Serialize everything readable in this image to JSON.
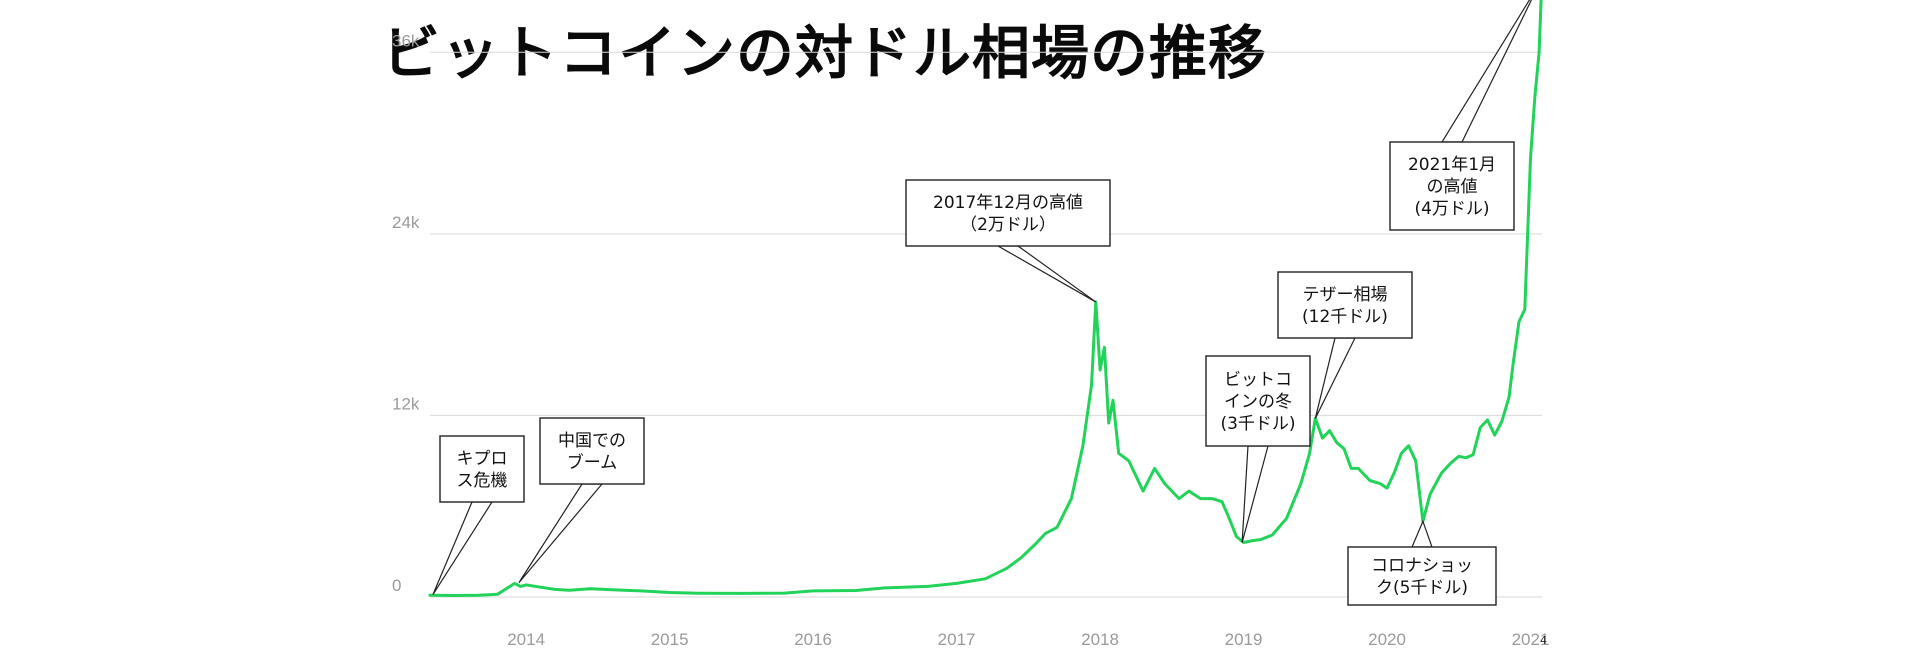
{
  "page_number": "4",
  "chart_data": {
    "type": "line",
    "title": "ビットコインの対ドル相場の推移",
    "xlabel": "",
    "ylabel": "",
    "xlim": [
      2013.33,
      2021.08
    ],
    "ylim": [
      0,
      38000
    ],
    "y_ticks": [
      {
        "value": 0,
        "label": "0"
      },
      {
        "value": 12000,
        "label": "12k"
      },
      {
        "value": 24000,
        "label": "24k"
      },
      {
        "value": 36000,
        "label": "36k"
      }
    ],
    "x_ticks": [
      {
        "value": 2014,
        "label": "2014"
      },
      {
        "value": 2015,
        "label": "2015"
      },
      {
        "value": 2016,
        "label": "2016"
      },
      {
        "value": 2017,
        "label": "2017"
      },
      {
        "value": 2018,
        "label": "2018"
      },
      {
        "value": 2019,
        "label": "2019"
      },
      {
        "value": 2020,
        "label": "2020"
      },
      {
        "value": 2021,
        "label": "2021"
      }
    ],
    "grid": {
      "horizontal": true,
      "vertical": false
    },
    "line_color": "#22d35a",
    "grid_color": "#d9d9d9",
    "series": [
      {
        "x": [
          2013.33,
          2013.5,
          2013.67,
          2013.8,
          2013.92,
          2013.96,
          2014.0,
          2014.1,
          2014.2,
          2014.3,
          2014.45,
          2014.6,
          2014.8,
          2015.0,
          2015.2,
          2015.5,
          2015.8,
          2016.0,
          2016.3,
          2016.5,
          2016.8,
          2017.0,
          2017.2,
          2017.35,
          2017.45,
          2017.55,
          2017.62,
          2017.7,
          2017.8,
          2017.88,
          2017.94,
          2017.97,
          2018.0,
          2018.03,
          2018.06,
          2018.09,
          2018.13,
          2018.2,
          2018.3,
          2018.38,
          2018.45,
          2018.55,
          2018.62,
          2018.7,
          2018.78,
          2018.85,
          2018.9,
          2018.95,
          2019.0,
          2019.05,
          2019.12,
          2019.2,
          2019.3,
          2019.4,
          2019.46,
          2019.5,
          2019.55,
          2019.6,
          2019.65,
          2019.7,
          2019.75,
          2019.8,
          2019.88,
          2019.95,
          2020.0,
          2020.05,
          2020.1,
          2020.15,
          2020.2,
          2020.25,
          2020.3,
          2020.38,
          2020.45,
          2020.5,
          2020.55,
          2020.6,
          2020.65,
          2020.7,
          2020.75,
          2020.8,
          2020.85,
          2020.88,
          2020.92,
          2020.96,
          2021.0,
          2021.03,
          2021.06,
          2021.08
        ],
        "y": [
          120,
          100,
          110,
          180,
          900,
          700,
          800,
          650,
          500,
          450,
          550,
          480,
          400,
          300,
          250,
          240,
          260,
          400,
          430,
          600,
          700,
          900,
          1200,
          1900,
          2600,
          3500,
          4200,
          4600,
          6500,
          10000,
          14000,
          19500,
          15000,
          16500,
          11500,
          13000,
          9500,
          9000,
          7000,
          8500,
          7500,
          6500,
          7000,
          6500,
          6500,
          6300,
          5200,
          4000,
          3600,
          3700,
          3800,
          4100,
          5200,
          7500,
          9500,
          11800,
          10500,
          11000,
          10200,
          9800,
          8500,
          8500,
          7700,
          7500,
          7200,
          8200,
          9500,
          10000,
          9000,
          5000,
          6800,
          8200,
          8900,
          9300,
          9200,
          9400,
          11200,
          11700,
          10700,
          11600,
          13200,
          15500,
          18200,
          19000,
          29000,
          33000,
          36000,
          41000
        ]
      }
    ],
    "annotations": [
      {
        "text": [
          "キプロ",
          "ス危機"
        ],
        "x": 2013.35,
        "y": 150
      },
      {
        "text": [
          "中国での",
          "ブーム"
        ],
        "x": 2013.95,
        "y": 950
      },
      {
        "text": [
          "2017年12月の高値",
          "（2万ドル）"
        ],
        "x": 2017.97,
        "y": 19500
      },
      {
        "text": [
          "ビットコ",
          "インの冬",
          "(3千ドル)"
        ],
        "x": 2018.99,
        "y": 3600
      },
      {
        "text": [
          "テザー相場",
          "(12千ドル)"
        ],
        "x": 2019.5,
        "y": 11800
      },
      {
        "text": [
          "コロナショッ",
          "ク(5千ドル)"
        ],
        "x": 2020.25,
        "y": 5000
      },
      {
        "text": [
          "2021年1月",
          "の高値",
          "(4万ドル)"
        ],
        "x": 2021.06,
        "y": 40500
      }
    ]
  }
}
